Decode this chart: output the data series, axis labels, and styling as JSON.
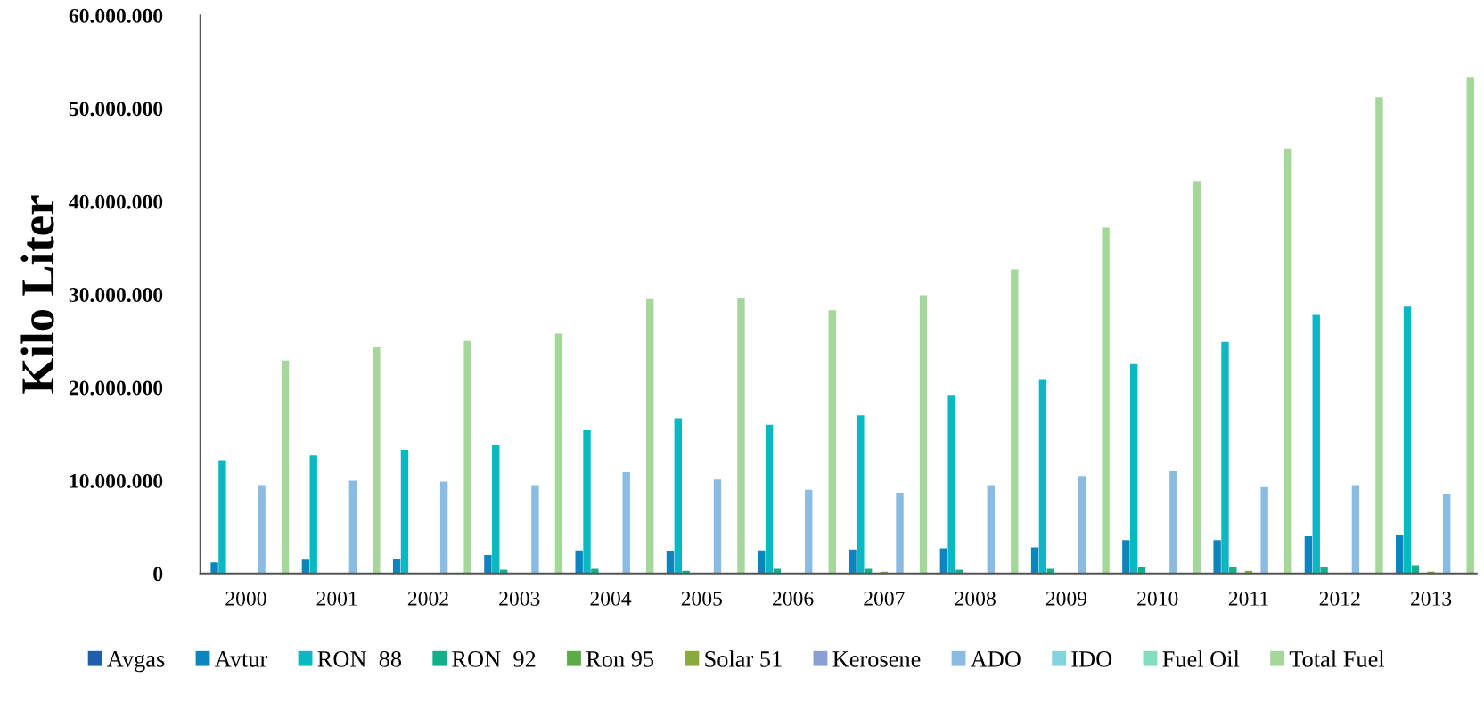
{
  "chart_data": {
    "type": "bar",
    "ylabel": "Kilo Liter",
    "categories": [
      "2000",
      "2001",
      "2002",
      "2003",
      "2004",
      "2005",
      "2006",
      "2007",
      "2008",
      "2009",
      "2010",
      "2011",
      "2012",
      "2013"
    ],
    "ylim": [
      0,
      60000000
    ],
    "yticks": [
      {
        "value": 0,
        "label": "0"
      },
      {
        "value": 10000000,
        "label": "10.000.000"
      },
      {
        "value": 20000000,
        "label": "20.000.000"
      },
      {
        "value": 30000000,
        "label": "30.000.000"
      },
      {
        "value": 40000000,
        "label": "40.000.000"
      },
      {
        "value": 50000000,
        "label": "50.000.000"
      },
      {
        "value": 60000000,
        "label": "60.000.000"
      }
    ],
    "grid": false,
    "legend": "bottom",
    "series": [
      {
        "name": "Avgas",
        "color": "#1f5fa8",
        "values": [
          0,
          0,
          0,
          0,
          0,
          0,
          0,
          0,
          0,
          0,
          0,
          0,
          0,
          0
        ]
      },
      {
        "name": "Avtur",
        "color": "#0c85bf",
        "values": [
          1200000,
          1500000,
          1600000,
          2000000,
          2500000,
          2400000,
          2500000,
          2600000,
          2700000,
          2800000,
          3600000,
          3600000,
          4000000,
          4200000
        ]
      },
      {
        "name": "RON  88",
        "color": "#0ab8c4",
        "values": [
          12200000,
          12700000,
          13300000,
          13800000,
          15400000,
          16700000,
          16000000,
          17000000,
          19200000,
          20900000,
          22500000,
          24900000,
          27800000,
          28700000
        ]
      },
      {
        "name": "RON  92",
        "color": "#12b08a",
        "values": [
          0,
          0,
          0,
          400000,
          500000,
          300000,
          500000,
          500000,
          400000,
          500000,
          700000,
          700000,
          700000,
          900000
        ]
      },
      {
        "name": "Ron 95",
        "color": "#5aaa46",
        "values": [
          0,
          0,
          0,
          0,
          0,
          0,
          0,
          0,
          0,
          0,
          0,
          0,
          0,
          0
        ]
      },
      {
        "name": "Solar 51",
        "color": "#8aab3c",
        "values": [
          0,
          0,
          0,
          0,
          0,
          0,
          0,
          200000,
          0,
          0,
          0,
          300000,
          0,
          200000
        ]
      },
      {
        "name": "Kerosene",
        "color": "#8aa0d4",
        "values": [
          0,
          0,
          0,
          0,
          0,
          0,
          0,
          0,
          0,
          0,
          0,
          0,
          0,
          0
        ]
      },
      {
        "name": "ADO",
        "color": "#8abbe2",
        "values": [
          9500000,
          10000000,
          9900000,
          9500000,
          10900000,
          10100000,
          9000000,
          8700000,
          9500000,
          10500000,
          11000000,
          9300000,
          9500000,
          8600000
        ]
      },
      {
        "name": "IDO",
        "color": "#84d4e0",
        "values": [
          0,
          0,
          0,
          0,
          0,
          0,
          0,
          0,
          0,
          0,
          0,
          0,
          0,
          0
        ]
      },
      {
        "name": "Fuel Oil",
        "color": "#84dcc0",
        "values": [
          0,
          0,
          0,
          0,
          0,
          0,
          0,
          0,
          0,
          0,
          0,
          0,
          0,
          0
        ]
      },
      {
        "name": "Total Fuel",
        "color": "#a5d69a",
        "values": [
          22900000,
          24400000,
          25000000,
          25800000,
          29500000,
          29600000,
          28300000,
          29900000,
          32700000,
          37200000,
          42200000,
          45700000,
          51200000,
          53400000
        ]
      }
    ]
  }
}
